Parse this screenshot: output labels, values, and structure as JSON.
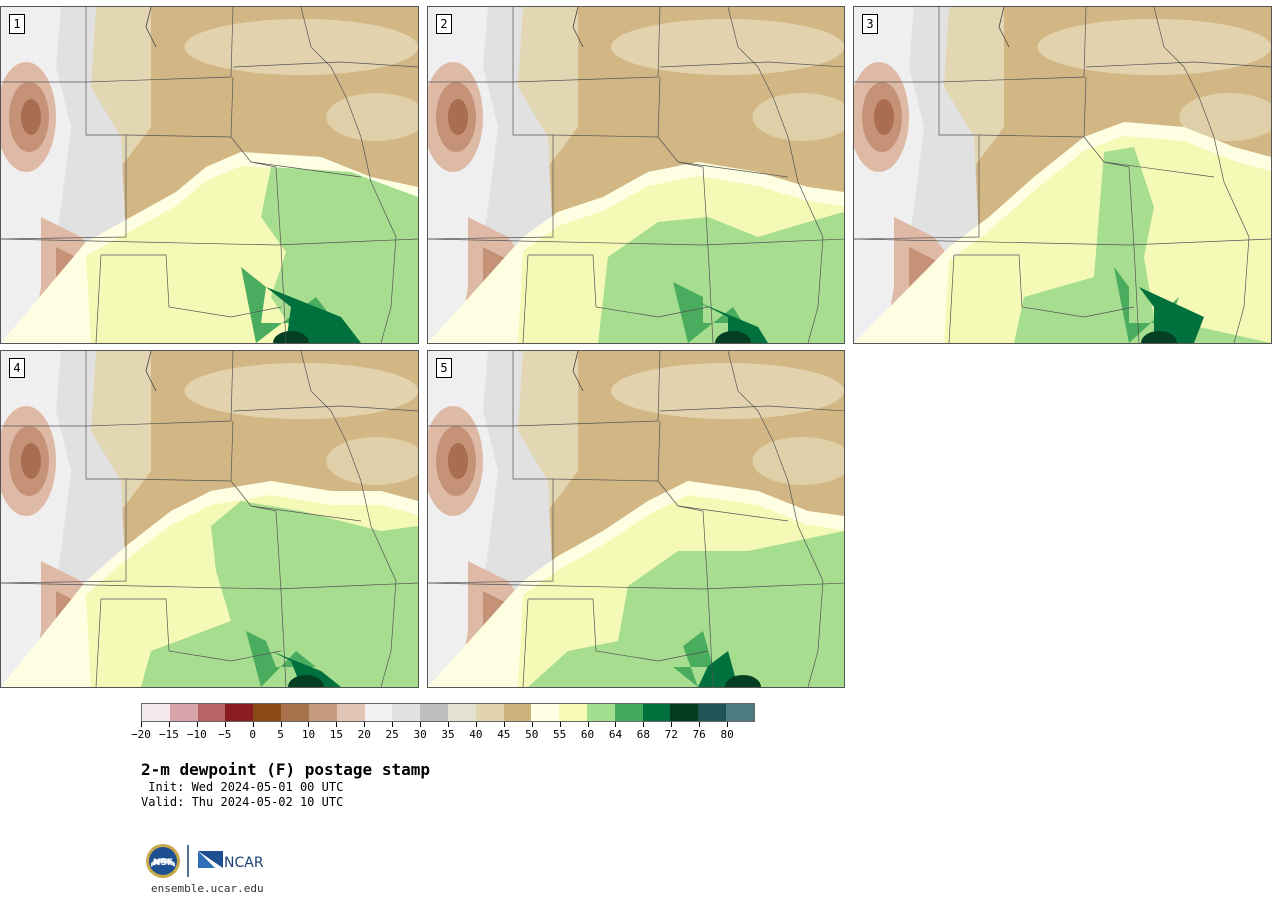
{
  "panels": [
    {
      "number": "1",
      "variant": 0
    },
    {
      "number": "2",
      "variant": 1
    },
    {
      "number": "3",
      "variant": 2
    },
    {
      "number": "4",
      "variant": 3
    },
    {
      "number": "5",
      "variant": 4
    }
  ],
  "colorbar": {
    "colors": [
      "#f4ecec",
      "#d8a6aa",
      "#b66468",
      "#8a1c22",
      "#8a4a14",
      "#a8734a",
      "#c49a7e",
      "#e0c4b6",
      "#f2f2f2",
      "#e2e2e2",
      "#bdbdbd",
      "#e3e1d2",
      "#e2d5ad",
      "#cdb27c",
      "#ffffe4",
      "#f6fab5",
      "#a3dd8e",
      "#45ab5c",
      "#00703c",
      "#023d22",
      "#1f5355",
      "#4f7b82"
    ],
    "tick_labels": [
      "−20",
      "−15",
      "−10",
      "−5",
      "0",
      "5",
      "10",
      "15",
      "20",
      "25",
      "30",
      "35",
      "40",
      "45",
      "50",
      "55",
      "60",
      "64",
      "68",
      "72",
      "76",
      "80"
    ]
  },
  "title": "2-m dewpoint (F) postage stamp",
  "init": " Init: Wed 2024-05-01 00 UTC",
  "valid": "Valid: Thu 2024-05-02 10 UTC",
  "logos": {
    "nsf": "NSF",
    "ncar": "NCAR"
  },
  "site": "ensemble.ucar.edu"
}
